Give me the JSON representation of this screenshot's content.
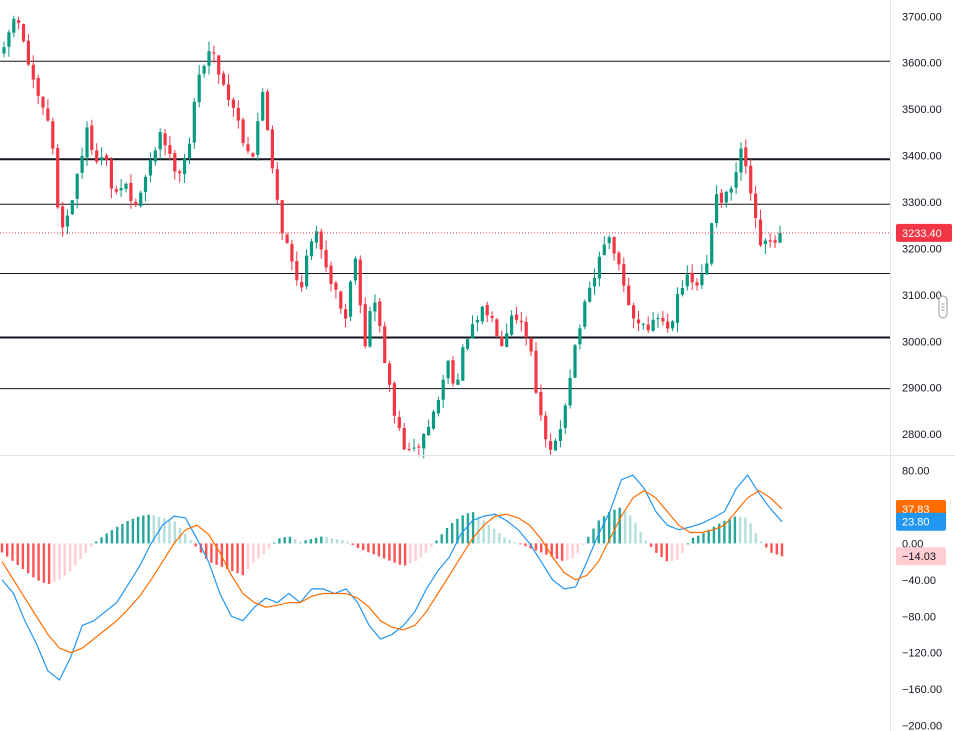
{
  "chart_data": [
    {
      "type": "candlestick",
      "panel": "price",
      "yaxis": {
        "ticks": [
          "3700.00",
          "3600.00",
          "3500.00",
          "3400.00",
          "3300.00",
          "3200.00",
          "3100.00",
          "3000.00",
          "2900.00",
          "2800.00"
        ],
        "range": [
          2755,
          3735
        ]
      },
      "last_price": {
        "label": "3233.40",
        "value": 3233.4,
        "color": "#f23645"
      },
      "horizontal_levels": [
        {
          "value": 3603,
          "weight": "thin"
        },
        {
          "value": 3392,
          "weight": "bold"
        },
        {
          "value": 3295,
          "weight": "thin"
        },
        {
          "value": 3146,
          "weight": "thin"
        },
        {
          "value": 3008,
          "weight": "bold"
        },
        {
          "value": 2898,
          "weight": "thin"
        }
      ],
      "path": [
        3620,
        3700,
        3660,
        3560,
        3500,
        3470,
        3250,
        3270,
        3370,
        3450,
        3400,
        3390,
        3300,
        3350,
        3280,
        3330,
        3390,
        3460,
        3390,
        3370,
        3420,
        3560,
        3630,
        3600,
        3540,
        3500,
        3430,
        3400,
        3540,
        3390,
        3250,
        3180,
        3110,
        3200,
        3230,
        3160,
        3100,
        3050,
        3200,
        2990,
        3100,
        2990,
        2860,
        2790,
        2750,
        2780,
        2820,
        2870,
        2960,
        2900,
        3010,
        3030,
        3070,
        3040,
        3000,
        3070,
        3040,
        2990,
        2840,
        2750,
        2790,
        2900,
        3010,
        3080,
        3140,
        3220,
        3200,
        3120,
        3050,
        3040,
        3030,
        3060,
        3020,
        3120,
        3130,
        3120,
        3150,
        3330,
        3300,
        3340,
        3420,
        3280,
        3200,
        3210,
        3233.4
      ],
      "colors": {
        "up": "#089981",
        "down": "#f23645"
      }
    },
    {
      "type": "macd",
      "panel": "indicator",
      "yaxis": {
        "ticks": [
          "80.00",
          "40.00",
          "0.00",
          "−40.00",
          "−80.00",
          "−120.00",
          "−160.00",
          "−200.00"
        ],
        "range": [
          -206,
          96
        ]
      },
      "series": [
        {
          "role": "macd",
          "color": "#2196f3",
          "values": [
            -40,
            -55,
            -85,
            -110,
            -140,
            -150,
            -125,
            -90,
            -85,
            -75,
            -65,
            -45,
            -25,
            0,
            20,
            30,
            28,
            5,
            -20,
            -55,
            -80,
            -85,
            -70,
            -60,
            -65,
            -55,
            -65,
            -50,
            -50,
            -55,
            -50,
            -65,
            -90,
            -105,
            -100,
            -90,
            -75,
            -50,
            -30,
            -15,
            10,
            25,
            30,
            32,
            25,
            15,
            0,
            -20,
            -40,
            -50,
            -48,
            -20,
            10,
            35,
            70,
            75,
            60,
            35,
            20,
            15,
            18,
            22,
            28,
            35,
            60,
            75,
            55,
            38,
            23.8
          ]
        },
        {
          "role": "signal",
          "color": "#ff6d00",
          "values": [
            -20,
            -40,
            -60,
            -80,
            -100,
            -115,
            -120,
            -115,
            -105,
            -95,
            -85,
            -72,
            -58,
            -40,
            -20,
            0,
            15,
            20,
            10,
            -10,
            -35,
            -55,
            -65,
            -70,
            -68,
            -65,
            -65,
            -58,
            -55,
            -55,
            -55,
            -60,
            -70,
            -85,
            -92,
            -95,
            -90,
            -75,
            -55,
            -35,
            -15,
            5,
            20,
            30,
            32,
            28,
            20,
            5,
            -15,
            -32,
            -40,
            -35,
            -20,
            5,
            30,
            50,
            58,
            50,
            35,
            20,
            12,
            12,
            15,
            20,
            35,
            50,
            58,
            50,
            37.83
          ]
        },
        {
          "role": "histogram",
          "colors": {
            "pos_strong": "#26a69a",
            "pos_weak": "#b2dfdb",
            "neg_strong": "#ff5252",
            "neg_weak": "#ffcdd2"
          },
          "values": [
            -10,
            -20,
            -30,
            -40,
            -45,
            -40,
            -30,
            -15,
            0,
            10,
            18,
            25,
            30,
            32,
            28,
            25,
            10,
            -5,
            -20,
            -25,
            -30,
            -35,
            -20,
            -10,
            5,
            8,
            2,
            5,
            8,
            5,
            3,
            -5,
            -10,
            -15,
            -20,
            -25,
            -20,
            -10,
            5,
            20,
            30,
            35,
            25,
            15,
            5,
            0,
            -5,
            -10,
            -15,
            -20,
            -15,
            5,
            25,
            35,
            40,
            28,
            5,
            -10,
            -20,
            -18,
            5,
            10,
            18,
            25,
            30,
            28,
            5,
            -10,
            -14.03
          ]
        }
      ],
      "badges": [
        {
          "label": "37.83",
          "value": 37.83,
          "color": "#ff6d00",
          "text_color": "#ffffff"
        },
        {
          "label": "23.80",
          "value": 23.8,
          "color": "#2196f3",
          "text_color": "#ffffff"
        },
        {
          "label": "−14.03",
          "value": -14.03,
          "color": "#ffcdd2",
          "text_color": "#131722"
        }
      ]
    }
  ]
}
